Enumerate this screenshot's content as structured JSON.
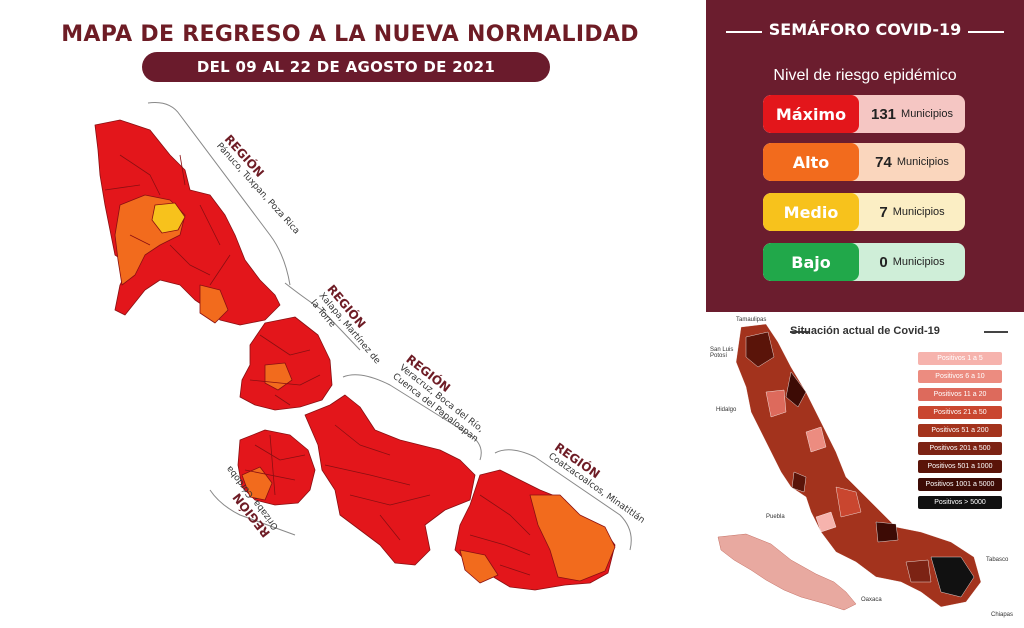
{
  "header": {
    "title": "MAPA DE REGRESO A LA NUEVA NORMALIDAD",
    "date_range": "DEL 09 AL 22 DE AGOSTO DE 2021"
  },
  "regions": [
    {
      "title": "REGIÓN",
      "subtitle": "Pánuco, Tuxpan, Poza Rica"
    },
    {
      "title": "REGIÓN",
      "subtitle": "Xalapa, Martínez de la Torre"
    },
    {
      "title": "REGIÓN",
      "subtitle": "Veracruz, Boca del Río, Cuenca del Papaloapan"
    },
    {
      "title": "REGIÓN",
      "subtitle": "Orizaba, Córdoba"
    },
    {
      "title": "REGIÓN",
      "subtitle": "Coatzacoalcos, Minatitlán"
    }
  ],
  "semaforo": {
    "title": "SEMÁFORO COVID-19",
    "subtitle": "Nivel de riesgo epidémico",
    "unit": "Municipios",
    "levels": [
      {
        "name": "Máximo",
        "count": "131",
        "color": "#e3161b",
        "bg": "#f5c6c3"
      },
      {
        "name": "Alto",
        "count": "74",
        "color": "#f26b1d",
        "bg": "#fad6bd"
      },
      {
        "name": "Medio",
        "count": "7",
        "color": "#f7c21c",
        "bg": "#fbeec4"
      },
      {
        "name": "Bajo",
        "count": "0",
        "color": "#21a84a",
        "bg": "#cfeed8"
      }
    ]
  },
  "map_colors": {
    "maximo": "#e3161b",
    "alto": "#f26b1d",
    "medio": "#f7c21c",
    "border": "#8a0f12"
  },
  "situacion": {
    "title": "Situación actual de Covid-19",
    "legend": [
      {
        "label": "Positivos 1 a 5",
        "color": "#f6b3ad"
      },
      {
        "label": "Positivos 6 a 10",
        "color": "#ec8c80"
      },
      {
        "label": "Positivos 11 a 20",
        "color": "#dd6a5c"
      },
      {
        "label": "Positivos 21 a 50",
        "color": "#c9462f"
      },
      {
        "label": "Positivos 51 a 200",
        "color": "#a3331d"
      },
      {
        "label": "Positivos 201 a 500",
        "color": "#7c2314"
      },
      {
        "label": "Positivos 501 a 1000",
        "color": "#5a1409"
      },
      {
        "label": "Positivos 1001 a 5000",
        "color": "#3d0b05"
      },
      {
        "label": "Positivos > 5000",
        "color": "#111111"
      }
    ],
    "places": [
      "Tamaulipas",
      "San Luis Potosí",
      "Hidalgo",
      "Puebla",
      "Oaxaca",
      "Tabasco",
      "Chiapas"
    ]
  }
}
